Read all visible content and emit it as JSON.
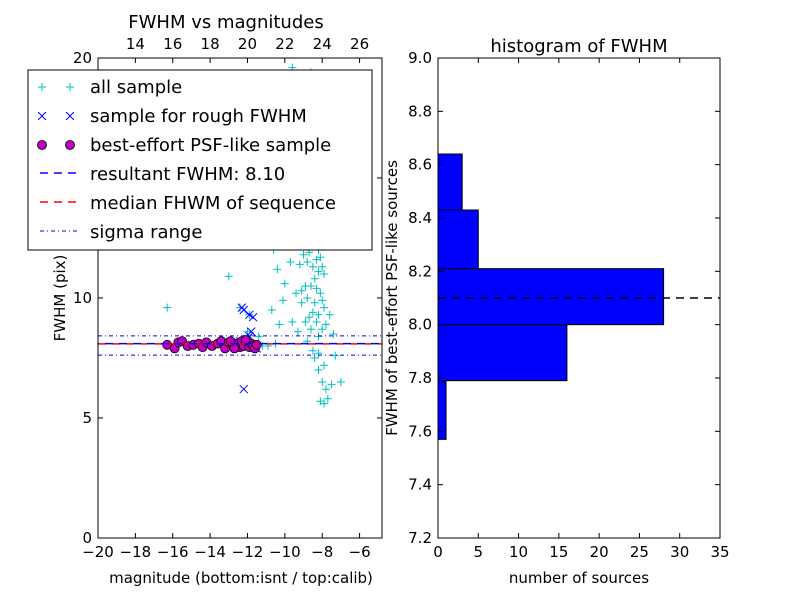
{
  "colors": {
    "all_sample": "#00bfbf",
    "rough": "#0000ff",
    "best": "#bf00bf",
    "resultant": "#0000ff",
    "median": "#ff0000",
    "sigma": "#0000ff",
    "bars": "#0000ff"
  },
  "chart_data": [
    {
      "type": "scatter",
      "title": "FWHM vs magnitudes",
      "xlabel": "magnitude (bottom:isnt / top:calib)",
      "ylabel": "FWHM (pix)",
      "xlim": [
        -20,
        -4.8
      ],
      "ylim": [
        0,
        20
      ],
      "x_ticks": [
        -20,
        -18,
        -16,
        -14,
        -12,
        -10,
        -8,
        -6
      ],
      "x_tick_labels": [
        "−20",
        "−18",
        "−16",
        "−14",
        "−12",
        "−10",
        "−8",
        "−6"
      ],
      "y_ticks": [
        0,
        5,
        10,
        15,
        20
      ],
      "y_tick_labels": [
        "0",
        "5",
        "10",
        "15",
        "20"
      ],
      "top_axis": {
        "offset": 32,
        "ticks": [
          14,
          16,
          18,
          20,
          22,
          24,
          26
        ],
        "tick_labels": [
          "14",
          "16",
          "18",
          "20",
          "22",
          "24",
          "26"
        ]
      },
      "lines": {
        "resultant": 8.1,
        "median": 8.09,
        "sigma": [
          7.62,
          8.42
        ]
      },
      "series": [
        {
          "name": "all sample",
          "marker": "plus",
          "points": [
            [
              -16.3,
              9.6
            ],
            [
              -16.1,
              12.3
            ],
            [
              -13.0,
              10.9
            ],
            [
              -12.6,
              12.6
            ],
            [
              -12.4,
              9.6
            ],
            [
              -12.0,
              8.6
            ],
            [
              -11.9,
              9.3
            ],
            [
              -11.7,
              7.9
            ],
            [
              -11.4,
              8.4
            ],
            [
              -11.2,
              8.0
            ],
            [
              -10.9,
              8.0
            ],
            [
              -10.7,
              9.5
            ],
            [
              -10.5,
              8.1
            ],
            [
              -10.3,
              8.9
            ],
            [
              -10.1,
              9.9
            ],
            [
              -10.6,
              12.0
            ],
            [
              -10.4,
              11.2
            ],
            [
              -10.2,
              12.7
            ],
            [
              -10.0,
              10.6
            ],
            [
              -9.7,
              11.5
            ],
            [
              -9.9,
              13.0
            ],
            [
              -9.5,
              12.2
            ],
            [
              -9.2,
              11.4
            ],
            [
              -9.4,
              10.2
            ],
            [
              -9.1,
              9.8
            ],
            [
              -8.9,
              10.5
            ],
            [
              -9.6,
              9.0
            ],
            [
              -9.3,
              8.6
            ],
            [
              -8.8,
              8.2
            ],
            [
              -8.5,
              7.8
            ],
            [
              -8.2,
              7.0
            ],
            [
              -8.0,
              6.5
            ],
            [
              -7.8,
              6.2
            ],
            [
              -7.5,
              6.4
            ],
            [
              -7.7,
              5.8
            ],
            [
              -8.1,
              5.7
            ],
            [
              -7.9,
              5.6
            ],
            [
              -8.4,
              13.5
            ],
            [
              -8.3,
              14.2
            ],
            [
              -8.6,
              12.8
            ],
            [
              -8.2,
              12.0
            ],
            [
              -8.0,
              11.3
            ],
            [
              -8.4,
              10.8
            ],
            [
              -8.7,
              11.9
            ],
            [
              -8.1,
              10.2
            ],
            [
              -7.9,
              9.6
            ],
            [
              -8.3,
              9.0
            ],
            [
              -8.5,
              9.4
            ],
            [
              -8.8,
              10.0
            ],
            [
              -8.0,
              8.7
            ],
            [
              -8.2,
              8.4
            ],
            [
              -7.8,
              8.9
            ],
            [
              -8.6,
              8.7
            ],
            [
              -8.4,
              7.5
            ],
            [
              -8.2,
              7.7
            ],
            [
              -7.9,
              7.2
            ],
            [
              -9.0,
              12.6
            ],
            [
              -9.2,
              13.2
            ],
            [
              -8.9,
              13.8
            ],
            [
              -9.7,
              14.0
            ],
            [
              -8.5,
              14.7
            ],
            [
              -8.1,
              13.1
            ],
            [
              -7.8,
              12.4
            ],
            [
              -8.3,
              11.6
            ],
            [
              -8.7,
              9.2
            ],
            [
              -8.9,
              9.0
            ],
            [
              -9.1,
              10.3
            ],
            [
              -8.6,
              10.5
            ],
            [
              -8.3,
              10.4
            ],
            [
              -8.0,
              9.9
            ],
            [
              -7.9,
              11.0
            ],
            [
              -8.2,
              11.1
            ],
            [
              -8.5,
              11.3
            ],
            [
              -8.8,
              11.5
            ],
            [
              -9.0,
              11.8
            ],
            [
              -9.4,
              12.5
            ],
            [
              -7.6,
              9.3
            ],
            [
              -7.4,
              8.5
            ],
            [
              -7.3,
              7.6
            ],
            [
              -7.0,
              6.5
            ],
            [
              -10.8,
              16.0
            ],
            [
              -10.2,
              17.4
            ],
            [
              -9.0,
              18.0
            ],
            [
              -10.4,
              19.3
            ],
            [
              -9.6,
              19.6
            ],
            [
              -8.6,
              19.4
            ],
            [
              -11.0,
              15.0
            ],
            [
              -10.0,
              14.5
            ],
            [
              -9.5,
              16.5
            ],
            [
              -8.0,
              15.5
            ],
            [
              -9.0,
              15.3
            ],
            [
              -8.4,
              12.2
            ],
            [
              -8.2,
              12.8
            ],
            [
              -8.0,
              13.6
            ],
            [
              -8.6,
              13.3
            ],
            [
              -8.8,
              12.9
            ],
            [
              -7.9,
              12.3
            ],
            [
              -8.1,
              11.7
            ],
            [
              -8.4,
              9.8
            ],
            [
              -8.2,
              9.3
            ]
          ]
        },
        {
          "name": "sample for rough FWHM",
          "marker": "x",
          "points": [
            [
              -12.3,
              12.3
            ],
            [
              -12.3,
              9.6
            ],
            [
              -12.2,
              9.5
            ],
            [
              -12.2,
              6.2
            ],
            [
              -11.9,
              9.3
            ],
            [
              -11.7,
              9.2
            ],
            [
              -11.8,
              8.6
            ],
            [
              -12.0,
              8.3
            ],
            [
              -11.9,
              8.4
            ],
            [
              -12.4,
              8.2
            ],
            [
              -12.6,
              8.1
            ],
            [
              -11.5,
              7.9
            ]
          ]
        },
        {
          "name": "best-effort PSF-like sample",
          "marker": "circle",
          "points": [
            [
              -16.3,
              8.05
            ],
            [
              -15.9,
              7.9
            ],
            [
              -15.7,
              8.15
            ],
            [
              -15.5,
              8.2
            ],
            [
              -15.2,
              8.0
            ],
            [
              -14.9,
              8.05
            ],
            [
              -14.6,
              8.1
            ],
            [
              -14.4,
              7.95
            ],
            [
              -14.2,
              8.15
            ],
            [
              -13.9,
              8.0
            ],
            [
              -13.6,
              8.1
            ],
            [
              -13.4,
              8.2
            ],
            [
              -13.2,
              7.9
            ],
            [
              -13.0,
              8.15
            ],
            [
              -12.8,
              8.05
            ],
            [
              -12.6,
              8.1
            ],
            [
              -12.4,
              7.95
            ],
            [
              -12.3,
              8.2
            ],
            [
              -12.2,
              8.0
            ],
            [
              -12.0,
              8.15
            ],
            [
              -11.9,
              7.95
            ],
            [
              -11.8,
              8.1
            ],
            [
              -11.7,
              8.0
            ],
            [
              -11.6,
              7.9
            ],
            [
              -11.5,
              8.05
            ],
            [
              -12.7,
              7.9
            ],
            [
              -12.9,
              8.2
            ],
            [
              -12.1,
              8.25
            ]
          ]
        }
      ],
      "legend": {
        "placement": "upper-left",
        "entries": [
          "all sample",
          "sample for rough FWHM",
          "best-effort PSF-like sample",
          "resultant FWHM: 8.10",
          "median FHWM of sequence",
          "sigma range"
        ]
      }
    },
    {
      "type": "bar",
      "orientation": "horizontal",
      "title": "histogram of FWHM",
      "xlabel": "number of sources",
      "ylabel": "FWHM of best-effort PSF-like sources",
      "xlim": [
        0,
        35
      ],
      "ylim": [
        7.2,
        9.0
      ],
      "x_ticks": [
        0,
        5,
        10,
        15,
        20,
        25,
        30,
        35
      ],
      "x_tick_labels": [
        "0",
        "5",
        "10",
        "15",
        "20",
        "25",
        "30",
        "35"
      ],
      "y_ticks": [
        7.2,
        7.4,
        7.6,
        7.8,
        8.0,
        8.2,
        8.4,
        8.6,
        8.8,
        9.0
      ],
      "y_tick_labels": [
        "7.2",
        "7.4",
        "7.6",
        "7.8",
        "8.0",
        "8.2",
        "8.4",
        "8.6",
        "8.8",
        "9.0"
      ],
      "bins": [
        {
          "from": 7.57,
          "to": 7.79,
          "count": 1
        },
        {
          "from": 7.79,
          "to": 8.0,
          "count": 16
        },
        {
          "from": 8.0,
          "to": 8.21,
          "count": 28
        },
        {
          "from": 8.21,
          "to": 8.43,
          "count": 5
        },
        {
          "from": 8.43,
          "to": 8.64,
          "count": 3
        }
      ],
      "reference_line": 8.1
    }
  ]
}
